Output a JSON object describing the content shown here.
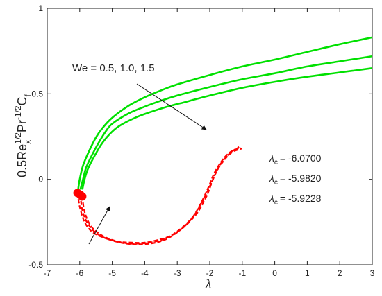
{
  "chart_data": {
    "type": "line",
    "title": "",
    "xlabel": "λ",
    "ylabel": {
      "base": "0.5Re",
      "sub1": "x",
      "sup1": "1/2",
      "mid": "Pr",
      "sup2": "-1/2",
      "c": "C",
      "sub2": "f"
    },
    "xlim": [
      -7,
      3
    ],
    "ylim": [
      -0.5,
      1
    ],
    "x_ticks": [
      -7,
      -6,
      -5,
      -4,
      -3,
      -2,
      -1,
      0,
      1,
      2,
      3
    ],
    "y_ticks": [
      -0.5,
      0,
      0.5,
      1
    ],
    "y_tick_labels": [
      "-0.5",
      "0",
      "0.5",
      "1"
    ],
    "grid": false,
    "colors": {
      "upper": "#00e000",
      "lower": "#ff0000",
      "axis": "#222222"
    },
    "series": [
      {
        "branch": "upper",
        "points": [
          [
            -5.98,
            -0.06
          ],
          [
            -5.9,
            0.0
          ],
          [
            -5.8,
            0.07
          ],
          [
            -5.6,
            0.15
          ],
          [
            -5.4,
            0.22
          ],
          [
            -5.2,
            0.28
          ],
          [
            -5.0,
            0.325
          ],
          [
            -4.5,
            0.385
          ],
          [
            -4.0,
            0.425
          ],
          [
            -3.5,
            0.46
          ],
          [
            -3.0,
            0.49
          ],
          [
            -2.0,
            0.54
          ],
          [
            -1.0,
            0.585
          ],
          [
            0.0,
            0.62
          ],
          [
            1.0,
            0.66
          ],
          [
            2.0,
            0.69
          ],
          [
            3.0,
            0.72
          ]
        ]
      },
      {
        "branch": "upper",
        "points": [
          [
            -6.05,
            -0.06
          ],
          [
            -6.0,
            0.0
          ],
          [
            -5.9,
            0.08
          ],
          [
            -5.7,
            0.17
          ],
          [
            -5.5,
            0.245
          ],
          [
            -5.3,
            0.3
          ],
          [
            -5.0,
            0.36
          ],
          [
            -4.5,
            0.43
          ],
          [
            -4.0,
            0.48
          ],
          [
            -3.5,
            0.52
          ],
          [
            -3.0,
            0.555
          ],
          [
            -2.0,
            0.61
          ],
          [
            -1.0,
            0.66
          ],
          [
            0.0,
            0.7
          ],
          [
            1.0,
            0.745
          ],
          [
            2.0,
            0.79
          ],
          [
            3.0,
            0.83
          ]
        ]
      },
      {
        "branch": "upper",
        "points": [
          [
            -5.92,
            -0.06
          ],
          [
            -5.85,
            0.0
          ],
          [
            -5.75,
            0.06
          ],
          [
            -5.55,
            0.135
          ],
          [
            -5.35,
            0.2
          ],
          [
            -5.1,
            0.26
          ],
          [
            -4.8,
            0.31
          ],
          [
            -4.3,
            0.36
          ],
          [
            -3.8,
            0.395
          ],
          [
            -3.3,
            0.425
          ],
          [
            -2.8,
            0.45
          ],
          [
            -2.0,
            0.49
          ],
          [
            -1.0,
            0.535
          ],
          [
            0.0,
            0.57
          ],
          [
            1.0,
            0.6
          ],
          [
            2.0,
            0.625
          ],
          [
            3.0,
            0.65
          ]
        ]
      },
      {
        "branch": "lower",
        "points": [
          [
            -6.07,
            -0.08
          ],
          [
            -6.0,
            -0.16
          ],
          [
            -5.85,
            -0.25
          ],
          [
            -5.6,
            -0.31
          ],
          [
            -5.2,
            -0.345
          ],
          [
            -4.8,
            -0.365
          ],
          [
            -4.4,
            -0.37
          ],
          [
            -4.0,
            -0.37
          ],
          [
            -3.6,
            -0.355
          ],
          [
            -3.2,
            -0.33
          ],
          [
            -2.8,
            -0.28
          ],
          [
            -2.4,
            -0.2
          ],
          [
            -2.1,
            -0.1
          ],
          [
            -1.9,
            0.0
          ],
          [
            -1.7,
            0.08
          ],
          [
            -1.5,
            0.13
          ],
          [
            -1.3,
            0.165
          ],
          [
            -1.1,
            0.19
          ]
        ]
      },
      {
        "branch": "lower",
        "points": [
          [
            -5.98,
            -0.09
          ],
          [
            -5.92,
            -0.18
          ],
          [
            -5.75,
            -0.26
          ],
          [
            -5.45,
            -0.32
          ],
          [
            -5.05,
            -0.355
          ],
          [
            -4.6,
            -0.375
          ],
          [
            -4.2,
            -0.38
          ],
          [
            -3.8,
            -0.375
          ],
          [
            -3.4,
            -0.355
          ],
          [
            -3.0,
            -0.31
          ],
          [
            -2.6,
            -0.24
          ],
          [
            -2.3,
            -0.15
          ],
          [
            -2.05,
            -0.05
          ],
          [
            -1.85,
            0.04
          ],
          [
            -1.6,
            0.115
          ],
          [
            -1.4,
            0.155
          ],
          [
            -1.2,
            0.175
          ],
          [
            -1.05,
            0.185
          ]
        ]
      },
      {
        "branch": "lower",
        "points": [
          [
            -5.92,
            -0.1
          ],
          [
            -5.85,
            -0.19
          ],
          [
            -5.65,
            -0.275
          ],
          [
            -5.3,
            -0.33
          ],
          [
            -4.9,
            -0.36
          ],
          [
            -4.5,
            -0.375
          ],
          [
            -4.1,
            -0.375
          ],
          [
            -3.7,
            -0.365
          ],
          [
            -3.3,
            -0.34
          ],
          [
            -2.9,
            -0.29
          ],
          [
            -2.5,
            -0.215
          ],
          [
            -2.2,
            -0.12
          ],
          [
            -1.95,
            -0.02
          ],
          [
            -1.75,
            0.06
          ],
          [
            -1.5,
            0.125
          ],
          [
            -1.3,
            0.16
          ],
          [
            -1.1,
            0.175
          ],
          [
            -1.0,
            0.18
          ]
        ]
      }
    ],
    "critical_points": [
      [
        -6.07,
        -0.08
      ],
      [
        -5.982,
        -0.09
      ],
      [
        -5.9228,
        -0.1
      ]
    ],
    "annotations": {
      "we_label": "We = 0.5, 1.0, 1.5",
      "lambda_c": [
        {
          "sym": "λ",
          "sub": "c",
          "value": "= -6.0700"
        },
        {
          "sym": "λ",
          "sub": "c",
          "value": "= -5.9820"
        },
        {
          "sym": "λ",
          "sub": "c",
          "value": "= -5.9228"
        }
      ]
    }
  }
}
